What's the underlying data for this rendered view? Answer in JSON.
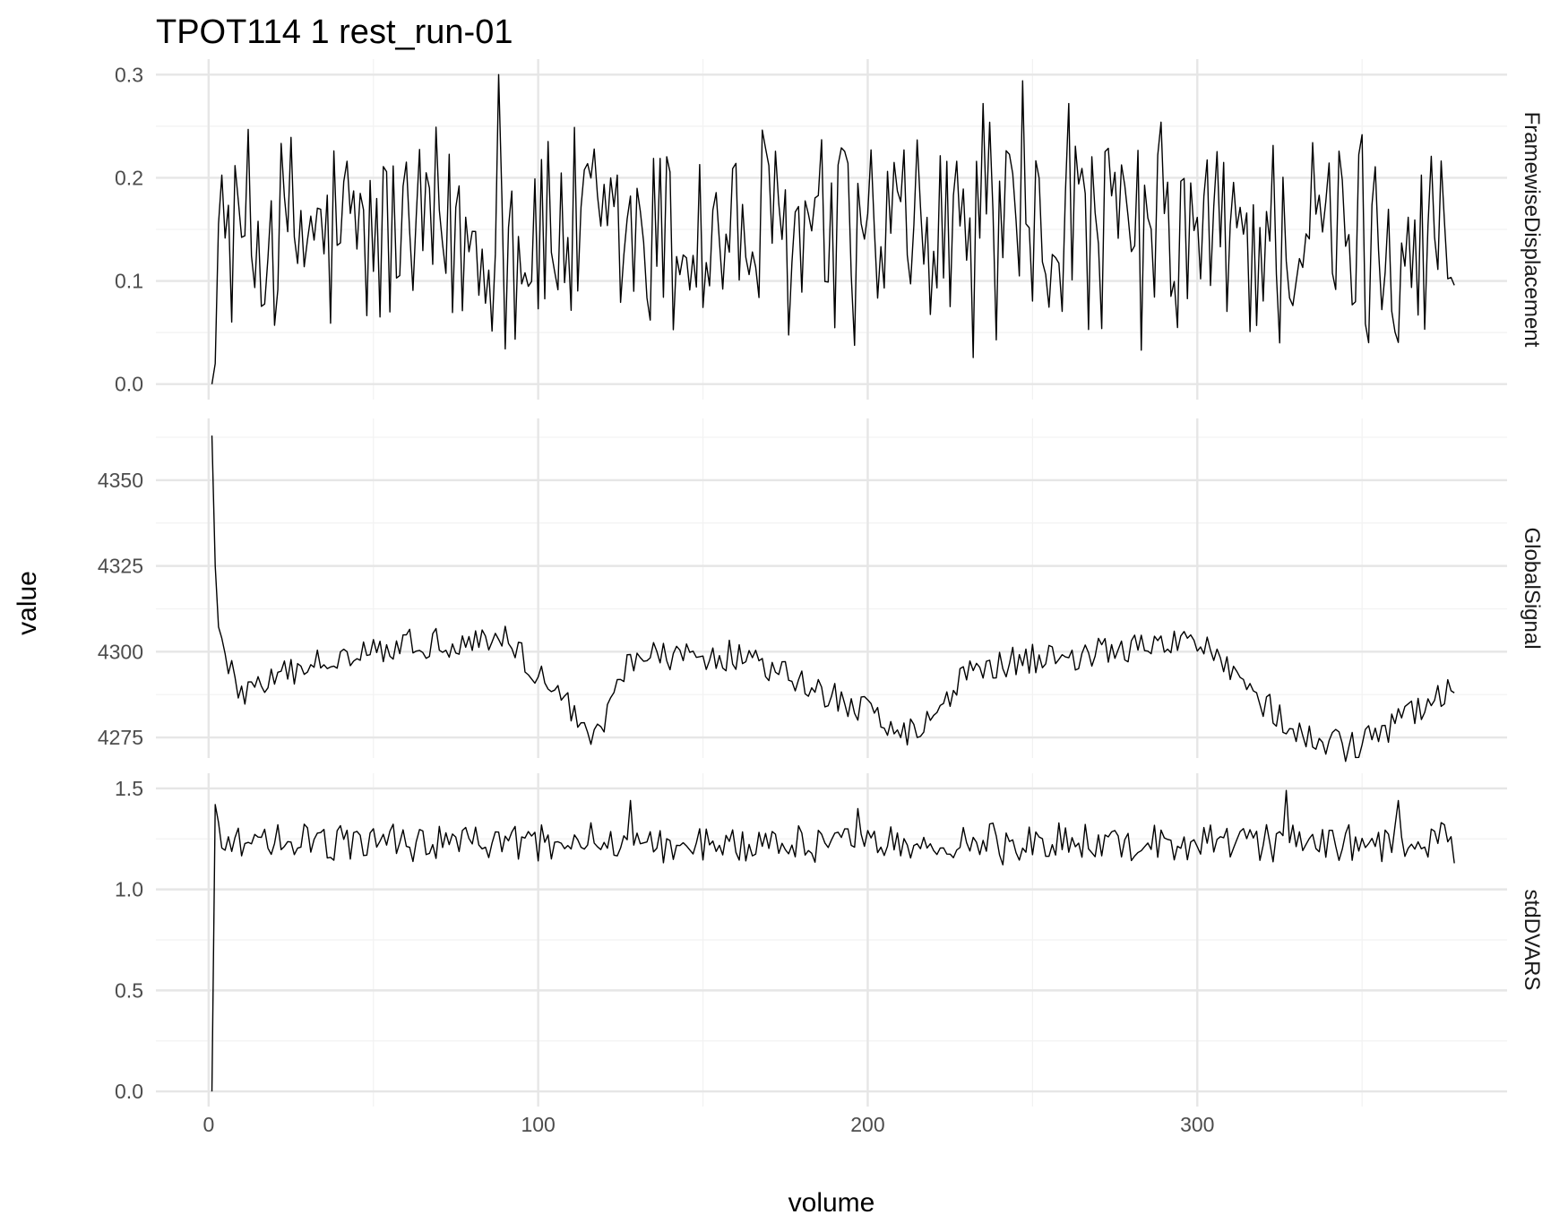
{
  "chart_data": {
    "type": "line",
    "title": "TPOT114  1  rest_run-01",
    "xlabel": "volume",
    "ylabel": "value",
    "xlim": [
      -16,
      394
    ],
    "x_ticks": [
      0,
      100,
      200,
      300
    ],
    "x_tick_labels": [
      "0",
      "100",
      "200",
      "300"
    ],
    "grid": true,
    "legend": "none",
    "line_color": "#000000",
    "n_points": 378,
    "series": [
      {
        "name": "FramewiseDisplacement",
        "ylim": [
          -0.015,
          0.315
        ],
        "y_ticks": [
          0.0,
          0.1,
          0.2,
          0.3
        ],
        "y_tick_labels": [
          "0.0",
          "0.1",
          "0.2",
          "0.3"
        ],
        "start_value": 0.0,
        "mean": 0.14,
        "min": 0.018,
        "max": 0.3,
        "peaks": [
          [
            88,
            0.3
          ],
          [
            247,
            0.294
          ],
          [
            235,
            0.272
          ],
          [
            261,
            0.272
          ]
        ]
      },
      {
        "name": "GlobalSignal",
        "ylim": [
          4269,
          4368
        ],
        "y_ticks": [
          4275,
          4300,
          4325,
          4350
        ],
        "y_tick_labels": [
          "4275",
          "4300",
          "4325",
          "4350"
        ],
        "start_value": 4363,
        "mean": 4290,
        "min": 4272,
        "max": 4363,
        "key_points": [
          [
            1,
            4363
          ],
          [
            2,
            4325
          ],
          [
            3,
            4305
          ],
          [
            5,
            4298
          ],
          [
            10,
            4288
          ],
          [
            45,
            4301
          ],
          [
            90,
            4304
          ],
          [
            118,
            4275
          ],
          [
            127,
            4298
          ],
          [
            160,
            4299
          ],
          [
            215,
            4276
          ],
          [
            232,
            4296
          ],
          [
            303,
            4303
          ],
          [
            330,
            4275
          ],
          [
            348,
            4272
          ],
          [
            376,
            4288
          ]
        ]
      },
      {
        "name": "stdDVARS",
        "ylim": [
          -0.075,
          1.575
        ],
        "y_ticks": [
          0.0,
          0.5,
          1.0,
          1.5
        ],
        "y_tick_labels": [
          "0.0",
          "0.5",
          "1.0",
          "1.5"
        ],
        "start_value": 0.0,
        "mean": 1.23,
        "min": 0.0,
        "max": 1.49,
        "peaks": [
          [
            2,
            1.42
          ],
          [
            128,
            1.44
          ],
          [
            197,
            1.4
          ],
          [
            327,
            1.49
          ],
          [
            361,
            1.44
          ]
        ]
      }
    ]
  }
}
